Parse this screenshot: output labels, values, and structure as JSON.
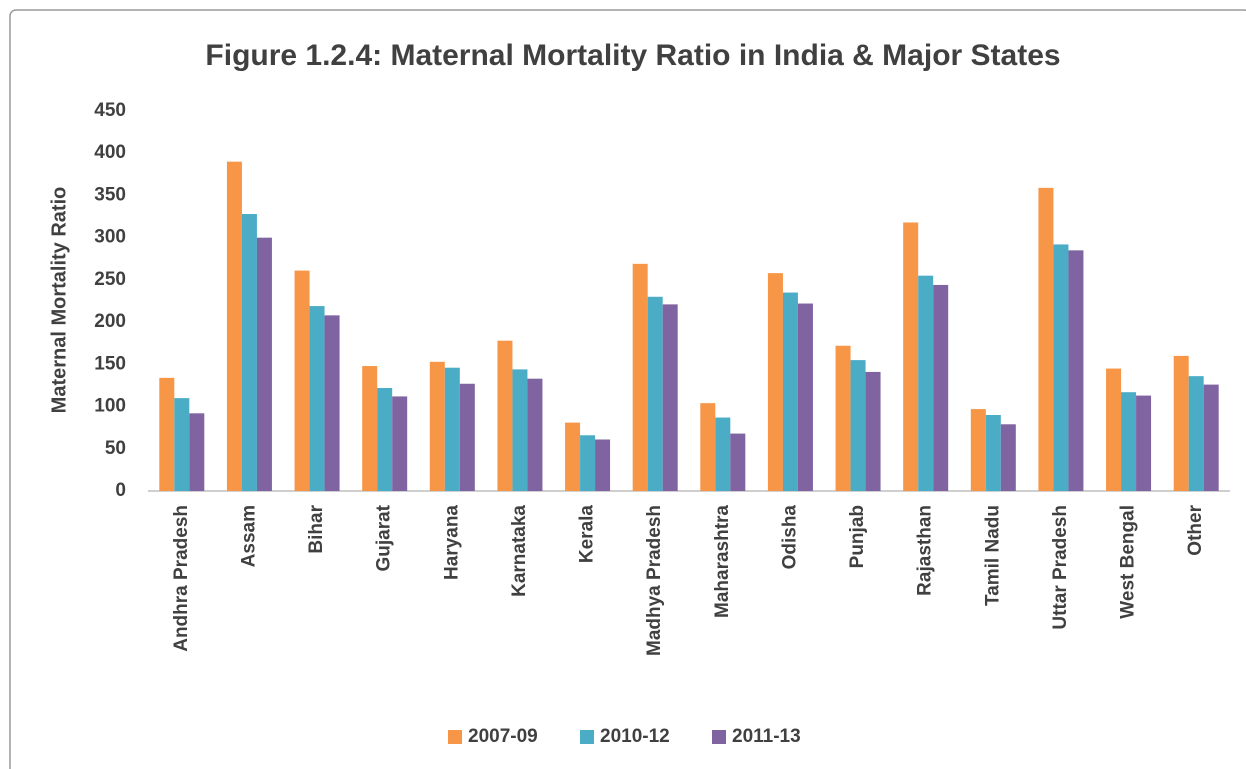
{
  "chart_data": {
    "type": "bar",
    "title": "Figure 1.2.4: Maternal Mortality Ratio in India & Major States",
    "y_label": "Maternal Mortality Ratio",
    "categories": [
      "Andhra Pradesh",
      "Assam",
      "Bihar",
      "Gujarat",
      "Haryana",
      "Karnataka",
      "Kerala",
      "Madhya Pradesh",
      "Maharashtra",
      "Odisha",
      "Punjab",
      "Rajasthan",
      "Tamil Nadu",
      "Uttar Pradesh",
      "West Bengal",
      "Other"
    ],
    "series": [
      {
        "name": "2007-09",
        "color": "#f79646",
        "values": [
          134,
          390,
          261,
          148,
          153,
          178,
          81,
          269,
          104,
          258,
          172,
          318,
          97,
          359,
          145,
          160
        ]
      },
      {
        "name": "2010-12",
        "color": "#4bacc6",
        "values": [
          110,
          328,
          219,
          122,
          146,
          144,
          66,
          230,
          87,
          235,
          155,
          255,
          90,
          292,
          117,
          136
        ]
      },
      {
        "name": "2011-13",
        "color": "#8064a2",
        "values": [
          92,
          300,
          208,
          112,
          127,
          133,
          61,
          221,
          68,
          222,
          141,
          244,
          79,
          285,
          113,
          126
        ]
      }
    ],
    "ylim": [
      0,
      450
    ],
    "yticks": [
      0,
      50,
      100,
      150,
      200,
      250,
      300,
      350,
      400,
      450
    ],
    "legend": "bottom"
  }
}
